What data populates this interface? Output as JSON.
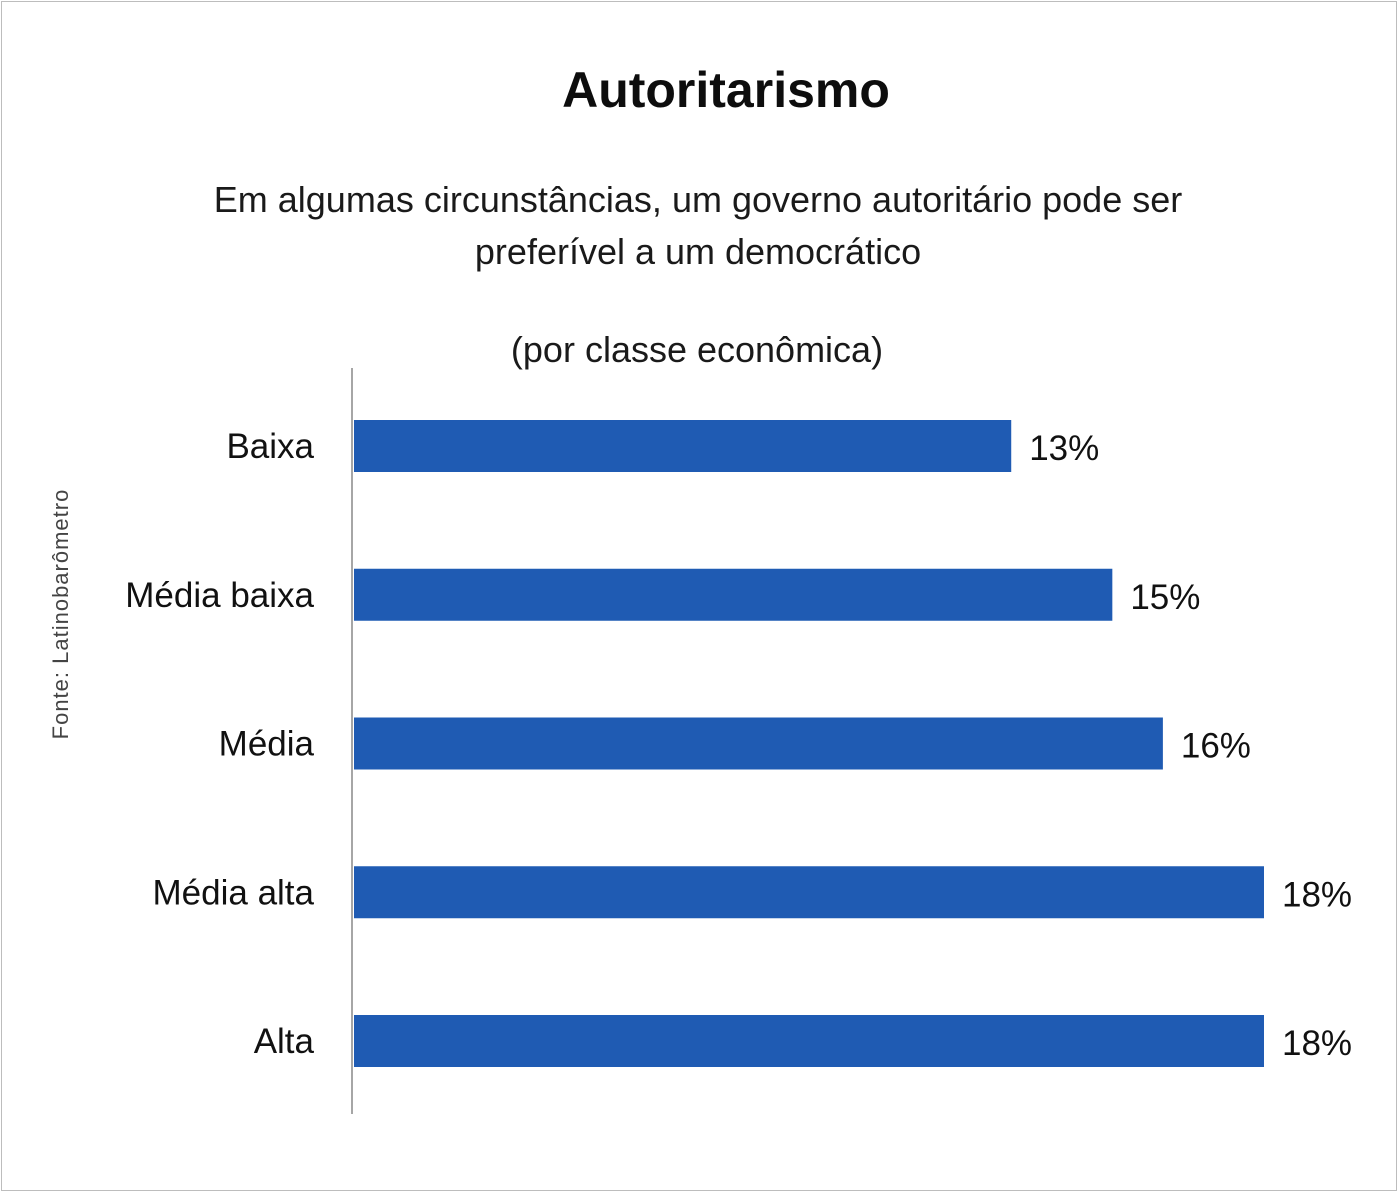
{
  "chart_data": {
    "type": "bar",
    "orientation": "horizontal",
    "title": "Autoritarismo",
    "subtitle": "Em algumas circunstâncias, um governo autoritário pode ser preferível a um democrático",
    "note": "(por classe econômica)",
    "source": "Fonte: Latinobarômetro",
    "categories": [
      "Baixa",
      "Média baixa",
      "Média",
      "Média alta",
      "Alta"
    ],
    "values": [
      13,
      15,
      16,
      18,
      18
    ],
    "value_labels": [
      "13%",
      "15%",
      "16%",
      "18%",
      "18%"
    ],
    "unit": "%",
    "xlim": [
      0,
      18
    ],
    "xlabel": "",
    "ylabel": "",
    "grid": false,
    "bar_color": "#1f5bb3",
    "axis_color": "#a6a6a6"
  }
}
